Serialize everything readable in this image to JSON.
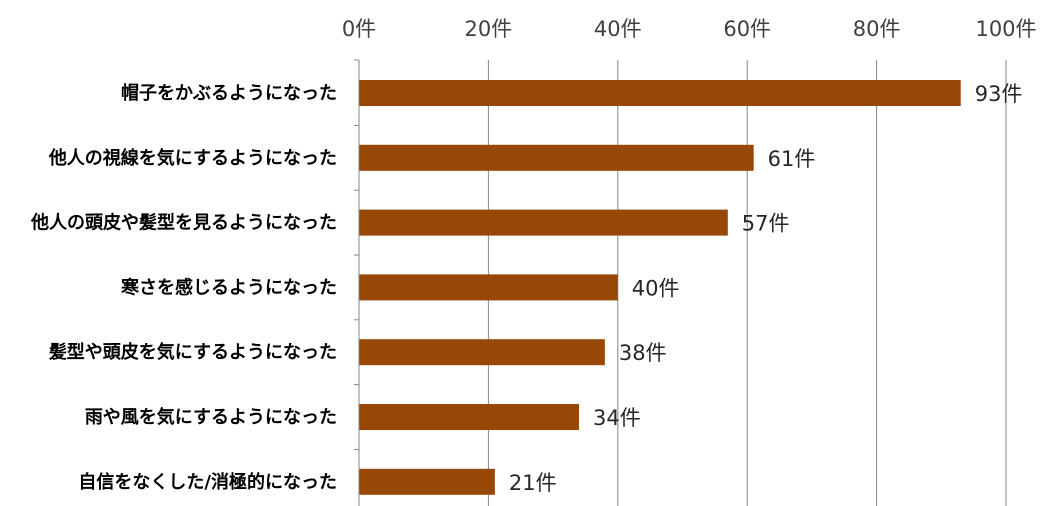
{
  "chart_data": {
    "type": "bar",
    "orientation": "horizontal",
    "categories": [
      "帽子をかぶるようになった",
      "他人の視線を気にするようになった",
      "他人の頭皮や髪型を見るようになった",
      "寒さを感じるようになった",
      "髪型や頭皮を気にするようになった",
      "雨や風を気にするようになった",
      "自信をなくした/消極的になった"
    ],
    "values": [
      93,
      61,
      57,
      40,
      38,
      34,
      21
    ],
    "value_labels": [
      "93件",
      "61件",
      "57件",
      "40件",
      "38件",
      "34件",
      "21件"
    ],
    "x_ticks": [
      0,
      20,
      40,
      60,
      80,
      100
    ],
    "x_tick_labels": [
      "0件",
      "20件",
      "40件",
      "60件",
      "80件",
      "100件"
    ],
    "xlim": [
      0,
      100
    ],
    "axis_position": "top",
    "grid": true,
    "legend": "none",
    "title": "",
    "xlabel": "",
    "ylabel": "",
    "bar_color": "#974706",
    "grid_color": "#868686",
    "axis_color": "#868686"
  }
}
